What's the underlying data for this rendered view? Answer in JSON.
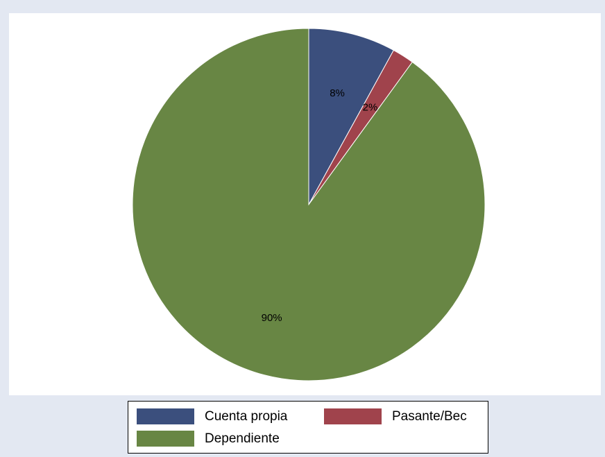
{
  "chart_data": {
    "type": "pie",
    "slices": [
      {
        "name": "Cuenta propia",
        "value": 8,
        "label": "8%",
        "color": "#3b4f7d"
      },
      {
        "name": "Pasante/Bec",
        "value": 2,
        "label": "2%",
        "color": "#a0434c"
      },
      {
        "name": "Dependiente",
        "value": 90,
        "label": "90%",
        "color": "#688644"
      }
    ],
    "start_angle": "12 o'clock",
    "direction": "clockwise",
    "legend_position": "bottom"
  },
  "legend": {
    "items": [
      {
        "label": "Cuenta propia",
        "color": "#3b4f7d"
      },
      {
        "label": "Pasante/Bec",
        "color": "#a0434c"
      },
      {
        "label": "Dependiente",
        "color": "#688644"
      }
    ]
  }
}
